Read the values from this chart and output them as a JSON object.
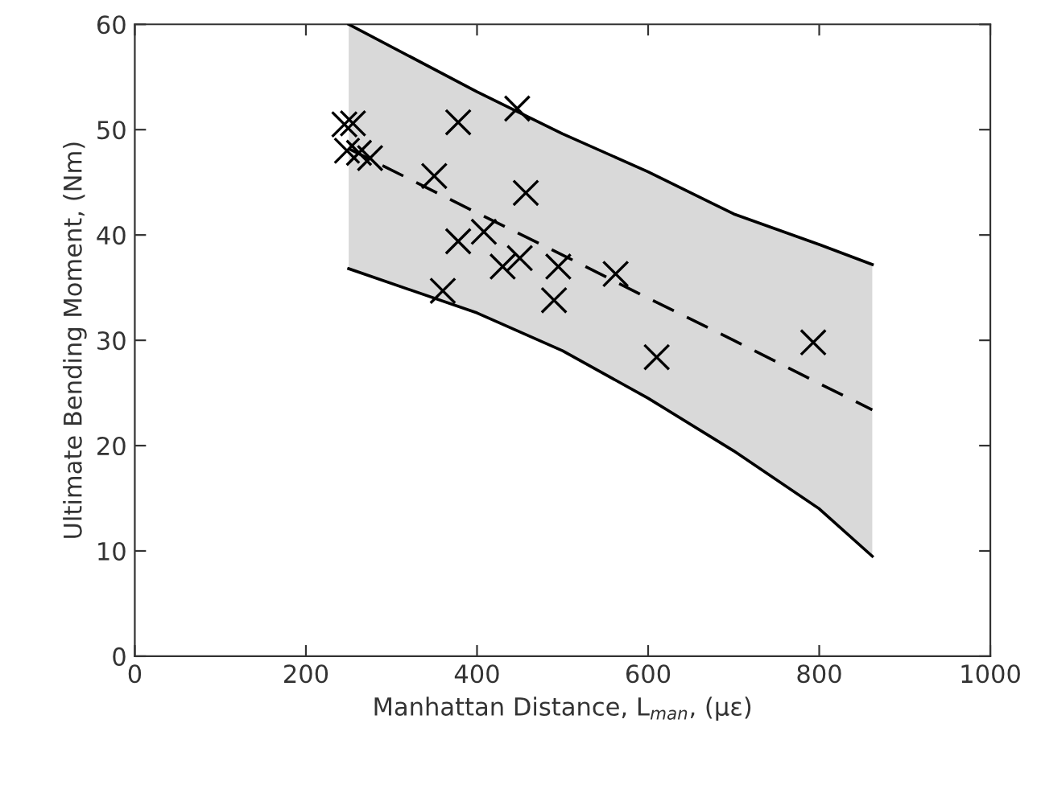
{
  "chart_data": {
    "type": "scatter",
    "xlabel": "Manhattan Distance, L$_{man}$, (με)",
    "ylabel": "Ultimate Bending Moment, (Nm)",
    "xlim": [
      0,
      1000
    ],
    "xticks": [
      0,
      200,
      400,
      600,
      800,
      1000
    ],
    "ylim": [
      0,
      60
    ],
    "yticks": [
      0,
      10,
      20,
      30,
      40,
      50,
      60
    ],
    "grid": false,
    "legend": false,
    "series": [
      {
        "type": "line",
        "color": "#000000",
        "line_style": "dashed",
        "marker": "none",
        "x": [
          250,
          400,
          500,
          600,
          700,
          800,
          862
        ],
        "values": [
          48.2,
          42.1,
          38.1,
          34.0,
          30.0,
          25.9,
          23.4
        ],
        "lower": [
          36.8,
          32.6,
          29.0,
          24.5,
          19.5,
          14.0,
          9.5
        ],
        "upper": [
          60,
          53.6,
          49.6,
          46.0,
          42.0,
          39.1,
          37.2
        ]
      },
      {
        "type": "line",
        "color": "#000000",
        "line_style": "solid",
        "marker": "none",
        "x": [
          250,
          400,
          500,
          600,
          700,
          800,
          862
        ],
        "values": [
          60,
          53.6,
          49.6,
          46.0,
          42.0,
          39.1,
          37.2
        ]
      },
      {
        "type": "line",
        "color": "#000000",
        "line_style": "solid",
        "marker": "none",
        "x": [
          250,
          400,
          500,
          600,
          700,
          800,
          862
        ],
        "values": [
          36.8,
          32.6,
          29.0,
          24.5,
          19.5,
          14.0,
          9.5
        ]
      },
      {
        "color": "#000000",
        "marker": "cross",
        "x": [
          245,
          255,
          248,
          262,
          275,
          350,
          378,
          447,
          457,
          408,
          378,
          430,
          450,
          495,
          490,
          360,
          562,
          610,
          793
        ],
        "values": [
          50.5,
          50.6,
          48,
          47.8,
          47.3,
          45.6,
          50.7,
          52,
          44,
          40.3,
          39.4,
          37,
          37.8,
          37,
          33.8,
          34.7,
          36.3,
          28.4,
          29.8
        ]
      }
    ]
  }
}
